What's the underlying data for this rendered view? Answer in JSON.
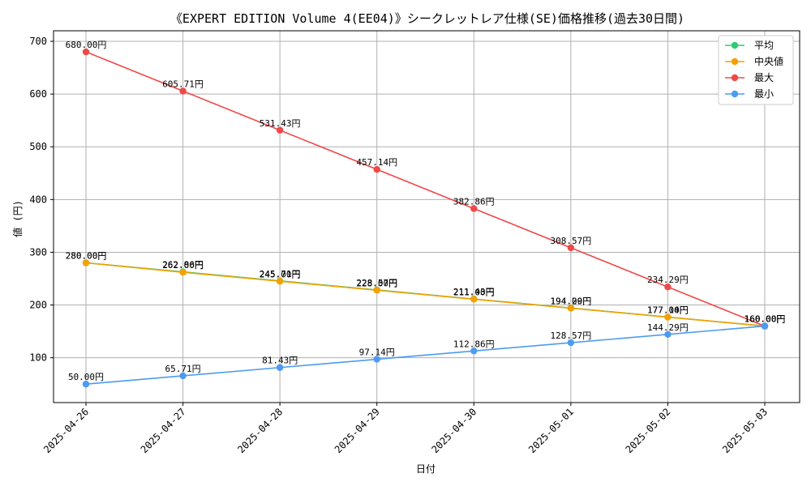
{
  "chart_data": {
    "type": "line",
    "title": "《EXPERT EDITION Volume 4(EE04)》シークレットレア仕様(SE)価格推移(過去30日間)",
    "xlabel": "日付",
    "ylabel": "値 (円)",
    "ylim": [
      15,
      720
    ],
    "yticks": [
      100,
      200,
      300,
      400,
      500,
      600,
      700
    ],
    "categories": [
      "2025-04-26",
      "2025-04-27",
      "2025-04-28",
      "2025-04-29",
      "2025-04-30",
      "2025-05-01",
      "2025-05-02",
      "2025-05-03"
    ],
    "grid": true,
    "legend_position": "top-right",
    "value_suffix": "円",
    "series": [
      {
        "name": "平均",
        "color": "#2ecc71",
        "values": [
          280.0,
          262.86,
          245.71,
          228.57,
          211.43,
          194.29,
          177.14,
          160.0
        ]
      },
      {
        "name": "中央値",
        "color": "#f5a000",
        "values": [
          280.0,
          262.0,
          245.0,
          228.0,
          211.0,
          194.0,
          177.0,
          160.0
        ]
      },
      {
        "name": "最大",
        "color": "#f04848",
        "values": [
          680.0,
          605.71,
          531.43,
          457.14,
          382.86,
          308.57,
          234.29,
          160.0
        ]
      },
      {
        "name": "最小",
        "color": "#4c9bf0",
        "values": [
          50.0,
          65.71,
          81.43,
          97.14,
          112.86,
          128.57,
          144.29,
          160.0
        ]
      }
    ]
  }
}
